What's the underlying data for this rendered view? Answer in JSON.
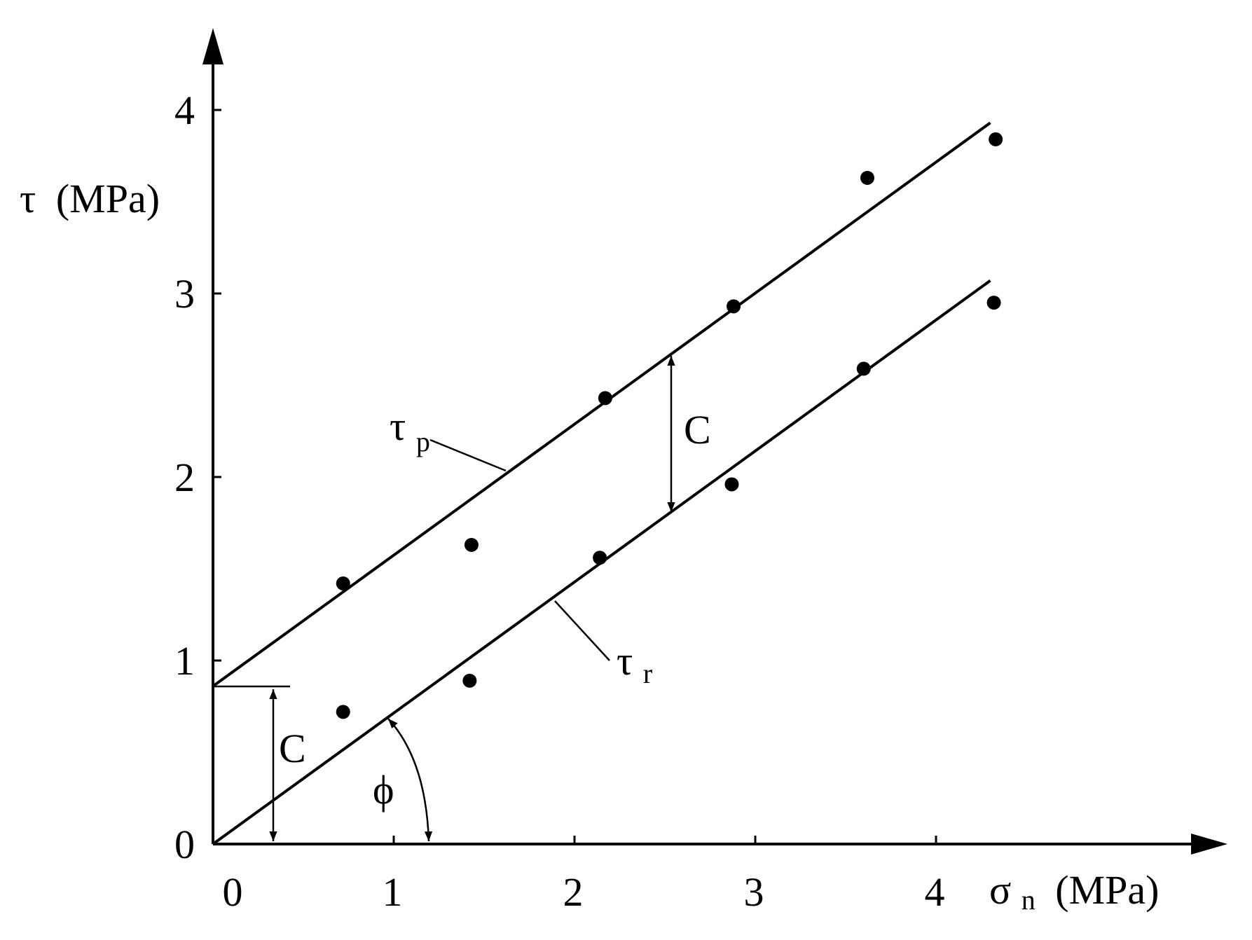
{
  "chart_data": {
    "type": "scatter",
    "x_axis": {
      "label_main": "σ",
      "label_sub": "n",
      "label_unit": "(MPa)",
      "ticks": [
        "0",
        "1",
        "2",
        "3",
        "4"
      ],
      "range": [
        0,
        5.6
      ]
    },
    "y_axis": {
      "label_main": "τ",
      "label_unit": "(MPa)",
      "ticks": [
        "0",
        "1",
        "2",
        "3",
        "4"
      ],
      "range": [
        0,
        4.35
      ]
    },
    "grid": false,
    "series": [
      {
        "name": "τp",
        "label_main": "τ",
        "label_sub": "p",
        "points": [
          {
            "x": 0.72,
            "y": 1.42
          },
          {
            "x": 1.43,
            "y": 1.63
          },
          {
            "x": 2.17,
            "y": 2.43
          },
          {
            "x": 2.88,
            "y": 2.93
          },
          {
            "x": 3.62,
            "y": 3.63
          },
          {
            "x": 4.33,
            "y": 3.84
          }
        ],
        "fit_line": {
          "x": [
            0,
            4.3
          ],
          "y": [
            0.86,
            3.93
          ]
        }
      },
      {
        "name": "τr",
        "label_main": "τ",
        "label_sub": "r",
        "points": [
          {
            "x": 0.72,
            "y": 0.72
          },
          {
            "x": 1.42,
            "y": 0.89
          },
          {
            "x": 2.14,
            "y": 1.56
          },
          {
            "x": 2.87,
            "y": 1.96
          },
          {
            "x": 3.6,
            "y": 2.59
          },
          {
            "x": 4.32,
            "y": 2.95
          }
        ],
        "fit_line": {
          "x": [
            0,
            4.3
          ],
          "y": [
            0,
            3.07
          ]
        }
      }
    ],
    "annotations": {
      "cohesion_label": "C",
      "angle_label": "ϕ",
      "cohesion_value": 0.86
    }
  }
}
